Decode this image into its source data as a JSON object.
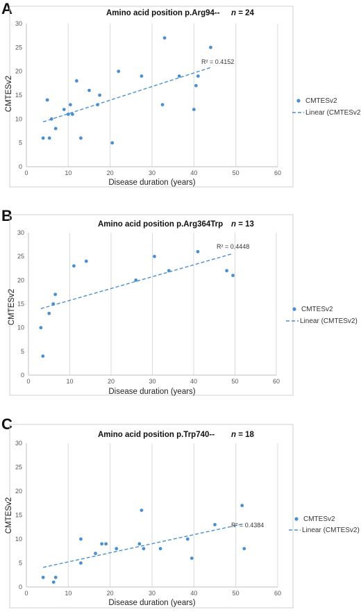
{
  "colors": {
    "point": "#4a8fcf",
    "trend": "#4a8fcf",
    "grid": "#d9d9d9",
    "frame": "#cfcfcf"
  },
  "chart_data": [
    {
      "panel_label": "A",
      "type": "scatter",
      "title": "Amino acid position p.Arg94--",
      "n_symbol": "n",
      "n_text": " = 24",
      "xlabel": "Disease duration (years)",
      "ylabel": "CMTESv2",
      "xlim": [
        0,
        60
      ],
      "ylim": [
        0,
        30
      ],
      "x_ticks": [
        0,
        10,
        20,
        30,
        40,
        50,
        60
      ],
      "y_ticks": [
        0,
        5,
        10,
        15,
        20,
        25,
        30
      ],
      "grid": "vertical",
      "legend_position": "right",
      "legend_entries": [
        "CMTESv2",
        "Linear (CMTESv2)"
      ],
      "r2_label": "R² = 0.4152",
      "trendline": {
        "x1": 4,
        "y1": 9.4,
        "x2": 44,
        "y2": 20.8
      },
      "points": [
        {
          "x": 4,
          "y": 6
        },
        {
          "x": 5,
          "y": 14
        },
        {
          "x": 5.5,
          "y": 6
        },
        {
          "x": 6,
          "y": 10
        },
        {
          "x": 7,
          "y": 8
        },
        {
          "x": 9,
          "y": 12
        },
        {
          "x": 10,
          "y": 11
        },
        {
          "x": 10.5,
          "y": 13
        },
        {
          "x": 11,
          "y": 11
        },
        {
          "x": 12,
          "y": 18
        },
        {
          "x": 13,
          "y": 6
        },
        {
          "x": 15,
          "y": 16
        },
        {
          "x": 17,
          "y": 13
        },
        {
          "x": 17.5,
          "y": 15
        },
        {
          "x": 20.5,
          "y": 5
        },
        {
          "x": 22,
          "y": 20
        },
        {
          "x": 27.5,
          "y": 19
        },
        {
          "x": 32.5,
          "y": 13
        },
        {
          "x": 33,
          "y": 27
        },
        {
          "x": 36.5,
          "y": 19
        },
        {
          "x": 40,
          "y": 12
        },
        {
          "x": 40.5,
          "y": 17
        },
        {
          "x": 41,
          "y": 19
        },
        {
          "x": 44,
          "y": 25
        }
      ]
    },
    {
      "panel_label": "B",
      "type": "scatter",
      "title": "Amino acid position p.Arg364Trp",
      "n_symbol": "n",
      "n_text": " = 13",
      "xlabel": "Disease duration (years)",
      "ylabel": "CMTESv2",
      "xlim": [
        0,
        60
      ],
      "ylim": [
        0,
        30
      ],
      "x_ticks": [
        0,
        10,
        20,
        30,
        40,
        50,
        60
      ],
      "y_ticks": [
        0,
        5,
        10,
        15,
        20,
        25,
        30
      ],
      "grid": "vertical",
      "legend_position": "right",
      "legend_entries": [
        "CMTESv2",
        "Linear (CMTESv2)"
      ],
      "r2_label": "R² = 0.4448",
      "trendline": {
        "x1": 3,
        "y1": 14,
        "x2": 49.5,
        "y2": 25.6
      },
      "points": [
        {
          "x": 3,
          "y": 10
        },
        {
          "x": 3.5,
          "y": 4
        },
        {
          "x": 5,
          "y": 13
        },
        {
          "x": 6,
          "y": 15
        },
        {
          "x": 6.5,
          "y": 17
        },
        {
          "x": 11,
          "y": 23
        },
        {
          "x": 14,
          "y": 24
        },
        {
          "x": 26,
          "y": 20
        },
        {
          "x": 30.5,
          "y": 25
        },
        {
          "x": 34,
          "y": 22
        },
        {
          "x": 41,
          "y": 26
        },
        {
          "x": 48,
          "y": 22
        },
        {
          "x": 49.5,
          "y": 21
        }
      ]
    },
    {
      "panel_label": "C",
      "type": "scatter",
      "title": "Amino acid position p.Trp740--",
      "n_symbol": "n",
      "n_text": " = 18",
      "xlabel": "Disease duration (years)",
      "ylabel": "CMTESv2",
      "xlim": [
        0,
        60
      ],
      "ylim": [
        0,
        30
      ],
      "x_ticks": [
        0,
        10,
        20,
        30,
        40,
        50,
        60
      ],
      "y_ticks": [
        0,
        5,
        10,
        15,
        20,
        25,
        30
      ],
      "grid": "vertical",
      "legend_position": "right",
      "legend_entries": [
        "CMTESv2",
        "Linear (CMTESv2)"
      ],
      "r2_label": "R² = 0.4384",
      "trendline": {
        "x1": 4,
        "y1": 4.1,
        "x2": 52,
        "y2": 13.2
      },
      "points": [
        {
          "x": 4,
          "y": 2
        },
        {
          "x": 6.5,
          "y": 1
        },
        {
          "x": 7,
          "y": 2
        },
        {
          "x": 13,
          "y": 10
        },
        {
          "x": 13,
          "y": 5
        },
        {
          "x": 16.5,
          "y": 7
        },
        {
          "x": 18,
          "y": 9
        },
        {
          "x": 19,
          "y": 9
        },
        {
          "x": 21.5,
          "y": 8
        },
        {
          "x": 27,
          "y": 9
        },
        {
          "x": 27.5,
          "y": 16
        },
        {
          "x": 28,
          "y": 8
        },
        {
          "x": 32,
          "y": 8
        },
        {
          "x": 38.5,
          "y": 10
        },
        {
          "x": 39.5,
          "y": 6
        },
        {
          "x": 45,
          "y": 13
        },
        {
          "x": 51.5,
          "y": 17
        },
        {
          "x": 52,
          "y": 8
        }
      ]
    }
  ]
}
